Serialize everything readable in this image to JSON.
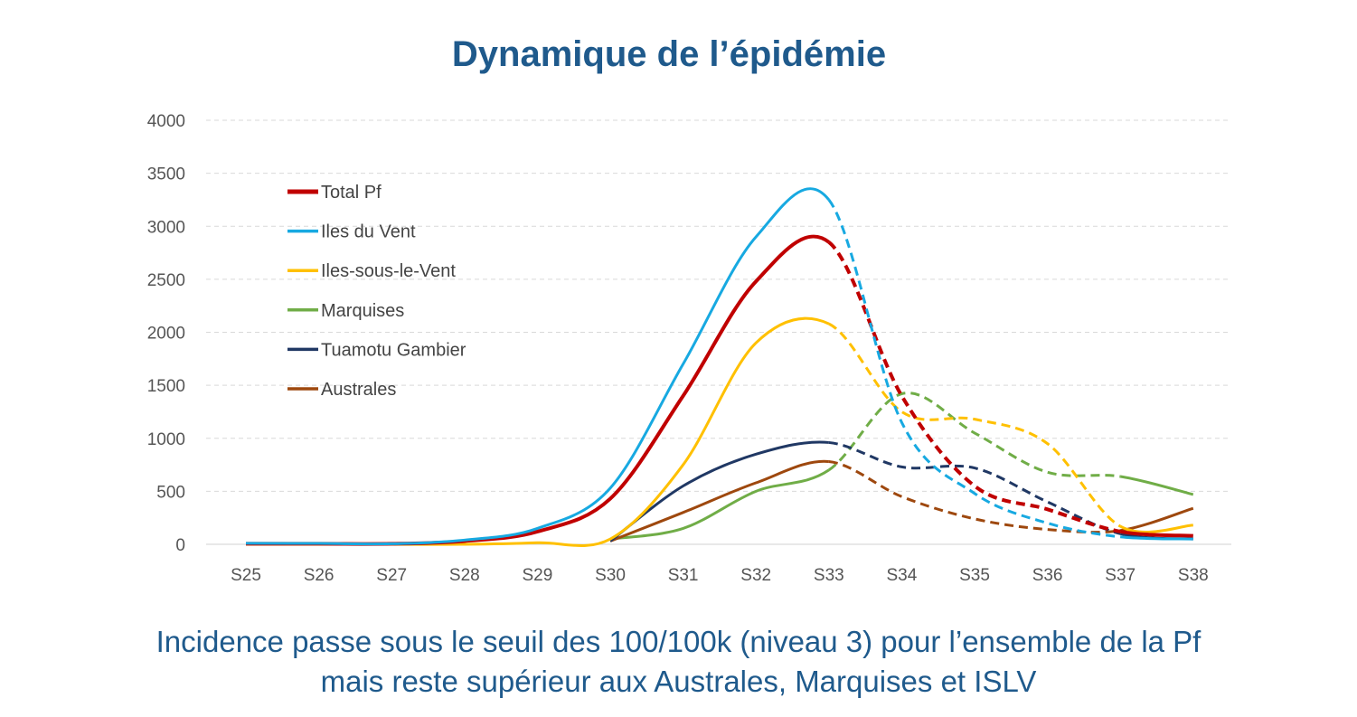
{
  "chart_data": {
    "type": "line",
    "title": "Dynamique de l’épidémie",
    "caption": [
      "Incidence passe sous le seuil des 100/100k (niveau 3) pour l’ensemble de la Pf",
      "mais reste supérieur aux Australes, Marquises et ISLV"
    ],
    "categories": [
      "S25",
      "S26",
      "S27",
      "S28",
      "S29",
      "S30",
      "S31",
      "S32",
      "S33",
      "S34",
      "S35",
      "S36",
      "S37",
      "S38"
    ],
    "ylim": [
      0,
      4000
    ],
    "yticks": [
      0,
      500,
      1000,
      1500,
      2000,
      2500,
      3000,
      3500,
      4000
    ],
    "grid": true,
    "legend_position": "top-left",
    "note": "dashed segments between S33 and S37",
    "series": [
      {
        "name": "Total Pf",
        "color": "#c00000",
        "values": [
          5,
          5,
          5,
          30,
          120,
          430,
          1400,
          2480,
          2850,
          1400,
          550,
          330,
          120,
          80
        ]
      },
      {
        "name": "Iles du Vent",
        "color": "#17a9e1",
        "values": [
          10,
          8,
          5,
          40,
          150,
          530,
          1700,
          2900,
          3250,
          1150,
          480,
          200,
          70,
          50
        ]
      },
      {
        "name": "Iles-sous-le-Vent",
        "color": "#ffc000",
        "values": [
          0,
          0,
          0,
          0,
          15,
          50,
          750,
          1900,
          2080,
          1250,
          1180,
          950,
          170,
          180
        ]
      },
      {
        "name": "Marquises",
        "color": "#70ad47",
        "values": [
          null,
          null,
          null,
          null,
          null,
          50,
          150,
          500,
          700,
          1420,
          1050,
          680,
          640,
          470
        ]
      },
      {
        "name": "Tuamotu Gambier",
        "color": "#203864",
        "values": [
          null,
          null,
          null,
          null,
          null,
          30,
          550,
          850,
          960,
          730,
          720,
          400,
          100,
          50
        ]
      },
      {
        "name": "Australes",
        "color": "#9e480e",
        "values": [
          null,
          null,
          null,
          null,
          null,
          30,
          300,
          580,
          780,
          450,
          240,
          140,
          130,
          340
        ]
      }
    ]
  }
}
